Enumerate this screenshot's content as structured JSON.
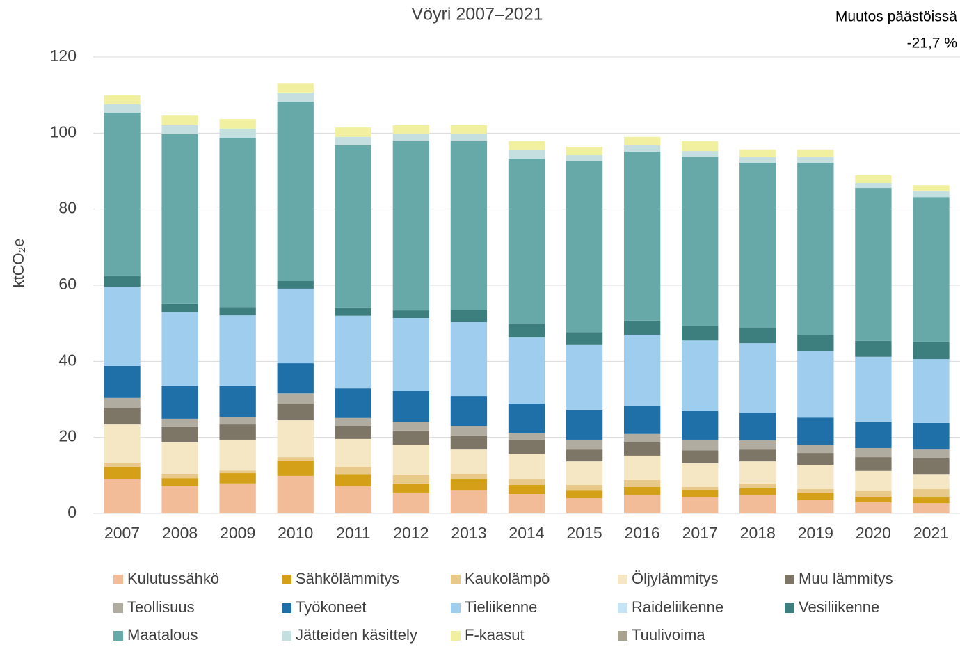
{
  "chart_data": {
    "type": "stacked_bar",
    "title": "Vöyri 2007–2021",
    "annotation": [
      "Muutos päästöissä",
      "-21,7 %"
    ],
    "ylabel": "ktCO₂e",
    "categories": [
      "2007",
      "2008",
      "2009",
      "2010",
      "2011",
      "2012",
      "2013",
      "2014",
      "2015",
      "2016",
      "2017",
      "2018",
      "2019",
      "2020",
      "2021"
    ],
    "ylim": [
      0,
      120
    ],
    "yticks": [
      0,
      20,
      40,
      60,
      80,
      100,
      120
    ],
    "grid": true,
    "series": [
      {
        "name": "Kulutussähkö",
        "color": "#f2bc98",
        "values": [
          9.0,
          7.2,
          7.9,
          9.9,
          7.1,
          5.5,
          6.0,
          5.1,
          4.0,
          4.8,
          4.2,
          4.8,
          3.5,
          2.9,
          2.7
        ]
      },
      {
        "name": "Sähkölämmitys",
        "color": "#d4a017",
        "values": [
          3.3,
          2.1,
          2.7,
          4.0,
          3.1,
          2.4,
          3.0,
          2.4,
          2.0,
          2.2,
          2.0,
          1.8,
          2.0,
          1.5,
          1.5
        ]
      },
      {
        "name": "Kaukolämpö",
        "color": "#e8c98a",
        "values": [
          1.1,
          1.1,
          0.7,
          0.9,
          2.1,
          2.2,
          1.4,
          1.6,
          1.5,
          1.8,
          0.8,
          1.3,
          0.9,
          1.5,
          2.2
        ]
      },
      {
        "name": "Öljylämmitys",
        "color": "#f5e6c4",
        "values": [
          10.0,
          8.3,
          8.1,
          9.7,
          7.3,
          8.0,
          6.4,
          6.6,
          6.2,
          6.4,
          6.2,
          5.8,
          6.4,
          5.3,
          3.8
        ]
      },
      {
        "name": "Muu lämmitys",
        "color": "#7d7566",
        "values": [
          4.4,
          4.0,
          4.0,
          4.4,
          3.3,
          3.7,
          3.7,
          3.7,
          3.1,
          3.5,
          3.4,
          3.1,
          3.1,
          3.6,
          4.3
        ]
      },
      {
        "name": "Teollisuus",
        "color": "#b0aca0",
        "values": [
          2.6,
          2.2,
          2.0,
          2.7,
          2.2,
          2.3,
          2.5,
          1.8,
          2.6,
          2.2,
          2.8,
          2.4,
          2.2,
          2.4,
          2.3
        ]
      },
      {
        "name": "Työkoneet",
        "color": "#1f6fa8",
        "values": [
          8.4,
          8.6,
          8.1,
          7.9,
          7.8,
          8.1,
          7.9,
          7.7,
          7.7,
          7.3,
          7.5,
          7.3,
          7.1,
          6.8,
          7.0
        ]
      },
      {
        "name": "Tieliikenne",
        "color": "#9fcdee",
        "values": [
          20.8,
          19.5,
          18.6,
          19.6,
          19.1,
          19.2,
          19.4,
          17.4,
          17.2,
          18.8,
          18.6,
          18.3,
          17.6,
          17.2,
          16.8
        ]
      },
      {
        "name": "Raideliikenne",
        "color": "#c5e4f5",
        "values": [
          0,
          0,
          0,
          0,
          0,
          0,
          0,
          0,
          0,
          0,
          0,
          0,
          0,
          0,
          0
        ]
      },
      {
        "name": "Vesiliikenne",
        "color": "#3d7f7f",
        "values": [
          2.8,
          2.1,
          2.0,
          2.0,
          2.0,
          2.0,
          3.3,
          3.6,
          3.4,
          3.7,
          3.9,
          4.0,
          4.2,
          4.2,
          4.6
        ]
      },
      {
        "name": "Maatalous",
        "color": "#67a8a8",
        "values": [
          43.0,
          44.6,
          44.7,
          47.2,
          42.8,
          44.5,
          44.3,
          43.4,
          44.9,
          44.4,
          44.4,
          43.4,
          45.2,
          40.2,
          38.0
        ]
      },
      {
        "name": "Jätteiden käsittely",
        "color": "#c5dfe0",
        "values": [
          2.2,
          2.4,
          2.4,
          2.4,
          2.2,
          2.0,
          2.0,
          2.2,
          1.6,
          1.7,
          1.5,
          1.5,
          1.5,
          1.3,
          1.5
        ]
      },
      {
        "name": "F-kaasut",
        "color": "#f0f0a0",
        "values": [
          2.4,
          2.5,
          2.5,
          2.3,
          2.5,
          2.2,
          2.2,
          2.4,
          2.2,
          2.2,
          2.6,
          2.0,
          2.0,
          2.0,
          1.6
        ]
      },
      {
        "name": "Tuulivoima",
        "color": "#a8a28f",
        "values": [
          0,
          0,
          0,
          0,
          0,
          0,
          0,
          0,
          0,
          0,
          0,
          0,
          0,
          0,
          0
        ]
      }
    ]
  }
}
